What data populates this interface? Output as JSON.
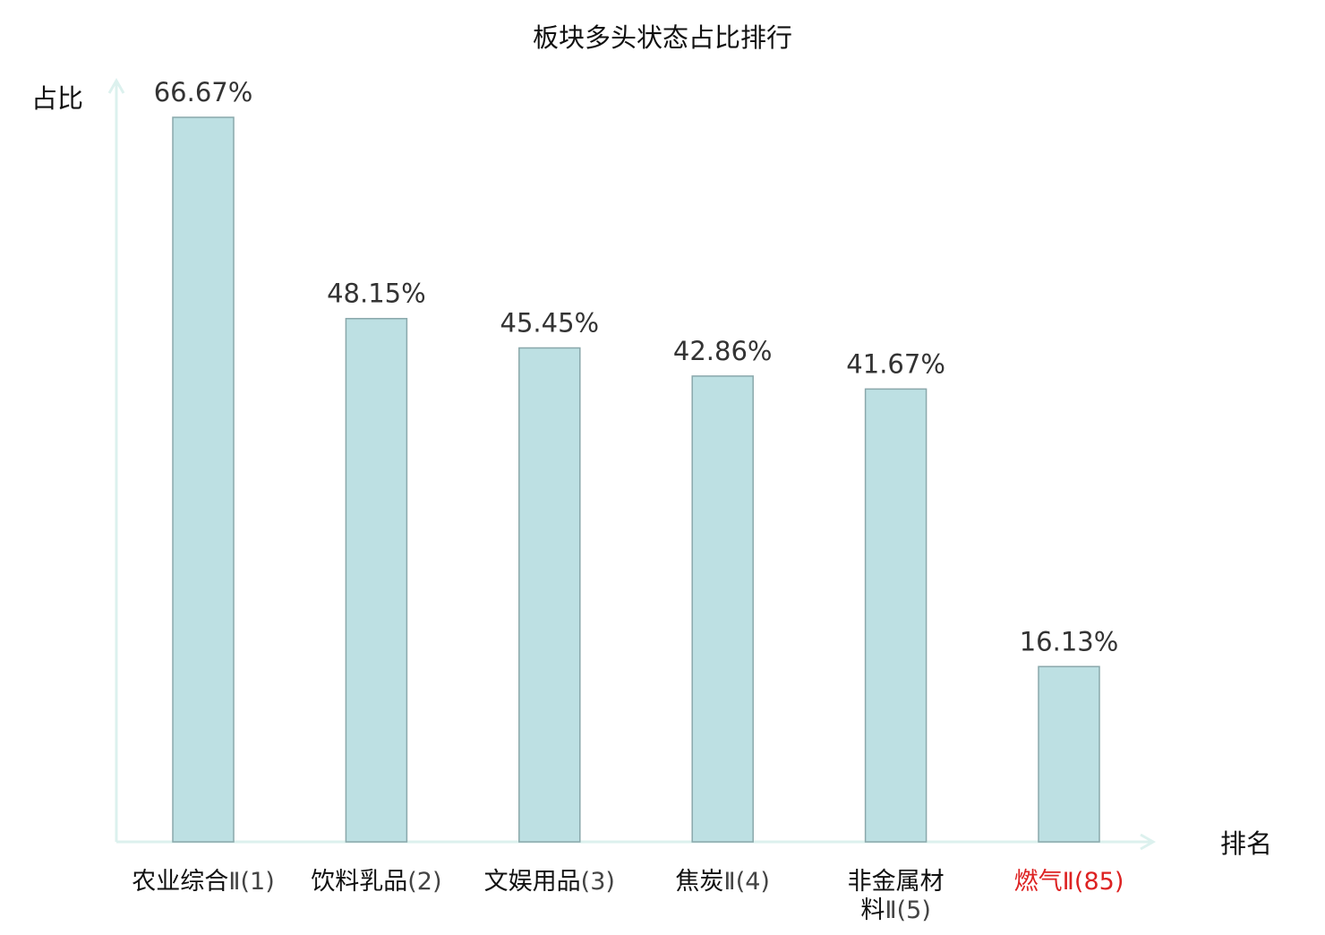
{
  "chart_data": {
    "type": "bar",
    "title": "板块多头状态占比排行",
    "ylabel": "占比",
    "xlabel": "排名",
    "ylim": [
      0,
      70
    ],
    "grid": false,
    "value_suffix": "%",
    "categories": [
      {
        "name": "农业综合",
        "suffix": "Ⅱ(1)",
        "highlight": false
      },
      {
        "name": "饮料乳品",
        "suffix": "(2)",
        "highlight": false
      },
      {
        "name": "文娱用品",
        "suffix": "(3)",
        "highlight": false
      },
      {
        "name": "焦炭",
        "suffix": "Ⅱ(4)",
        "highlight": false
      },
      {
        "name": "非金属材料",
        "suffix": "Ⅱ(5)",
        "highlight": false
      },
      {
        "name": "燃气",
        "suffix": "Ⅱ(85)",
        "highlight": true
      }
    ],
    "values": [
      66.67,
      48.15,
      45.45,
      42.86,
      41.67,
      16.13
    ]
  },
  "colors": {
    "bar_fill": "#bde0e3",
    "bar_stroke": "#8aa8ab",
    "axis": "#dcf1ee",
    "text": "#111111",
    "value_text": "#333333",
    "suffix_text": "#444444",
    "highlight": "#dd2222"
  }
}
